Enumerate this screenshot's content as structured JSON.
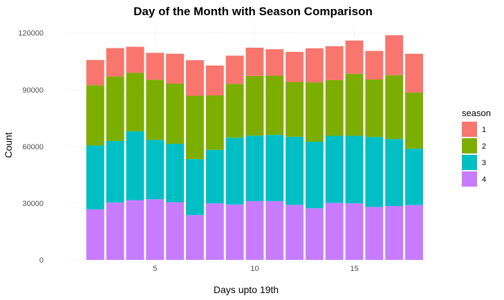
{
  "chart_data": {
    "type": "bar",
    "stacked": true,
    "title": "Day of the Month with Season Comparison",
    "xlabel": "Days upto 19th",
    "ylabel": "Count",
    "x": [
      2,
      3,
      4,
      5,
      6,
      7,
      8,
      9,
      10,
      11,
      12,
      13,
      14,
      15,
      16,
      17,
      18
    ],
    "x_ticks": [
      5,
      10,
      15
    ],
    "xlim": [
      0.55,
      18.45
    ],
    "ylim": [
      0,
      125000
    ],
    "y_ticks": [
      0,
      30000,
      60000,
      90000,
      120000
    ],
    "grid": true,
    "legend_title": "season",
    "legend_position": "right",
    "series": [
      {
        "name": "1",
        "color": "#F8766D",
        "values": [
          13300,
          15000,
          13800,
          14200,
          15800,
          18800,
          15800,
          14900,
          14900,
          14000,
          15900,
          18000,
          17900,
          17600,
          15100,
          21100,
          20500
        ]
      },
      {
        "name": "2",
        "color": "#7CAE00",
        "values": [
          31900,
          34100,
          30900,
          31800,
          31800,
          33500,
          28800,
          28500,
          31600,
          31300,
          29000,
          31400,
          29500,
          32800,
          30400,
          33800,
          29700
        ]
      },
      {
        "name": "3",
        "color": "#00BFC4",
        "values": [
          33800,
          32600,
          36400,
          31400,
          30900,
          29600,
          28300,
          35300,
          34600,
          35000,
          36000,
          35200,
          35400,
          35700,
          37000,
          35400,
          29800
        ]
      },
      {
        "name": "4",
        "color": "#C77CFF",
        "values": [
          26700,
          30300,
          31600,
          32100,
          30500,
          23700,
          29900,
          29300,
          31100,
          31100,
          29100,
          27300,
          30200,
          29900,
          28000,
          28500,
          29000
        ]
      }
    ]
  }
}
